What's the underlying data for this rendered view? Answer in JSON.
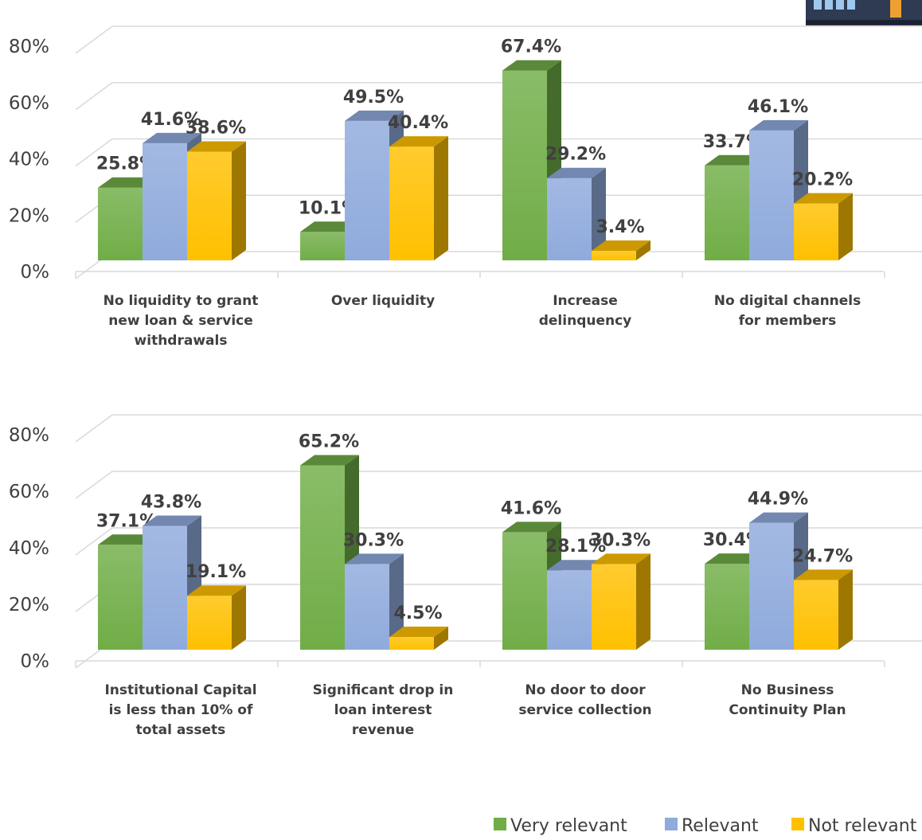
{
  "colors": {
    "very_relevant": "#70AD47",
    "relevant": "#8FAADC",
    "not_relevant": "#FFC000",
    "grid": "#D9D9D9",
    "text": "#404040"
  },
  "legend": {
    "items": [
      {
        "label": "Very relevant",
        "color": "#70AD47"
      },
      {
        "label": "Relevant",
        "color": "#8FAADC"
      },
      {
        "label": "Not relevant",
        "color": "#FFC000"
      }
    ],
    "position": "bottom-right"
  },
  "chart_data": [
    {
      "type": "bar",
      "style": "3d-clustered-column",
      "categories": [
        [
          "No liquidity to grant",
          "new loan & service",
          "withdrawals"
        ],
        [
          "Over liquidity"
        ],
        [
          "Increase",
          "delinquency"
        ],
        [
          "No digital channels",
          "for members"
        ]
      ],
      "series": [
        {
          "name": "Very relevant",
          "values": [
            25.8,
            10.1,
            67.4,
            33.7
          ]
        },
        {
          "name": "Relevant",
          "values": [
            41.6,
            49.5,
            29.2,
            46.1
          ]
        },
        {
          "name": "Not relevant",
          "values": [
            38.6,
            40.4,
            3.4,
            20.2
          ]
        }
      ],
      "y_ticks": [
        "0%",
        "20%",
        "40%",
        "60%",
        "80%"
      ],
      "ylim": [
        0,
        80
      ],
      "grid": true
    },
    {
      "type": "bar",
      "style": "3d-clustered-column",
      "categories": [
        [
          "Institutional Capital",
          "is less than 10% of",
          "total assets"
        ],
        [
          "Significant drop in",
          "loan interest",
          "revenue"
        ],
        [
          "No door to door",
          "service collection"
        ],
        [
          "No Business",
          "Continuity Plan"
        ]
      ],
      "series": [
        {
          "name": "Very relevant",
          "values": [
            37.1,
            65.2,
            41.6,
            30.4
          ]
        },
        {
          "name": "Relevant",
          "values": [
            43.8,
            30.3,
            28.1,
            44.9
          ]
        },
        {
          "name": "Not relevant",
          "values": [
            19.1,
            4.5,
            30.3,
            24.7
          ]
        }
      ],
      "y_ticks": [
        "0%",
        "20%",
        "40%",
        "60%",
        "80%"
      ],
      "ylim": [
        0,
        80
      ],
      "grid": true
    }
  ]
}
